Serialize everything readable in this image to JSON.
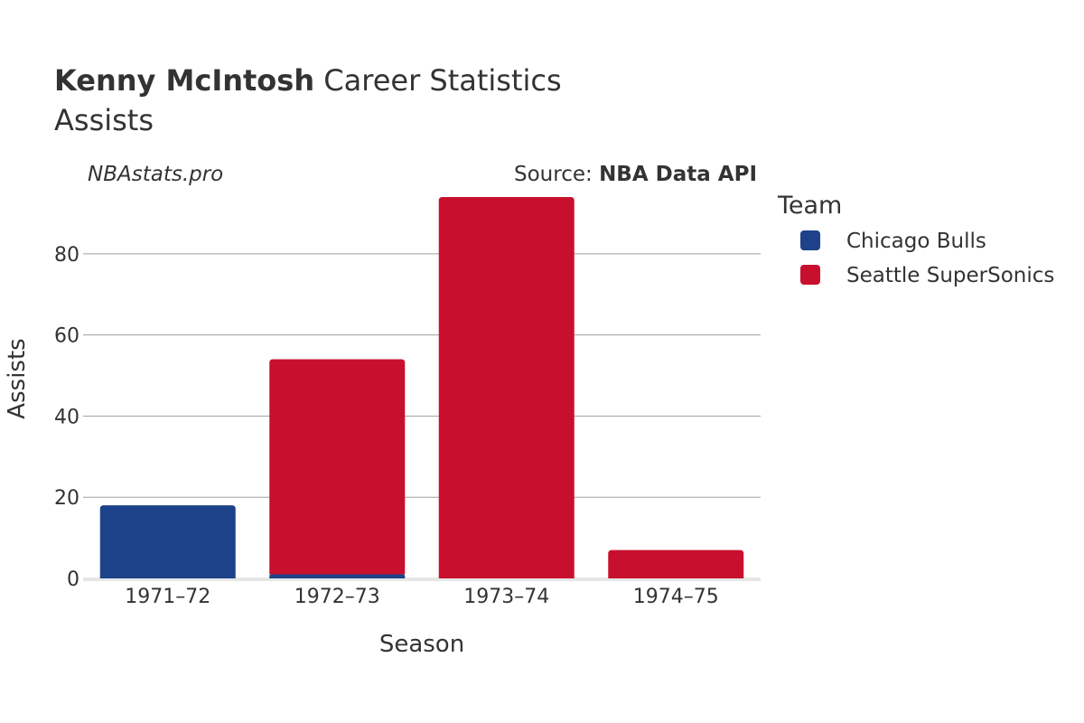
{
  "chart_data": {
    "type": "bar",
    "stacked": true,
    "title_bold": "Kenny McIntosh",
    "title_rest": " Career Statistics",
    "subtitle": "Assists",
    "watermark": "NBAstats.pro",
    "source_prefix": "Source: ",
    "source_name": "NBA Data API",
    "xlabel": "Season",
    "ylabel": "Assists",
    "categories": [
      "1971–72",
      "1972–73",
      "1973–74",
      "1974–75"
    ],
    "yticks": [
      0,
      20,
      40,
      60,
      80
    ],
    "ylim": [
      0,
      98
    ],
    "grid": true,
    "legend_title": "Team",
    "legend_placement": "right",
    "series": [
      {
        "name": "Chicago Bulls",
        "color": "#1d428a",
        "values": [
          18,
          1,
          0,
          0
        ]
      },
      {
        "name": "Seattle SuperSonics",
        "color": "#c8102e",
        "values": [
          0,
          53,
          94,
          7
        ]
      }
    ]
  }
}
